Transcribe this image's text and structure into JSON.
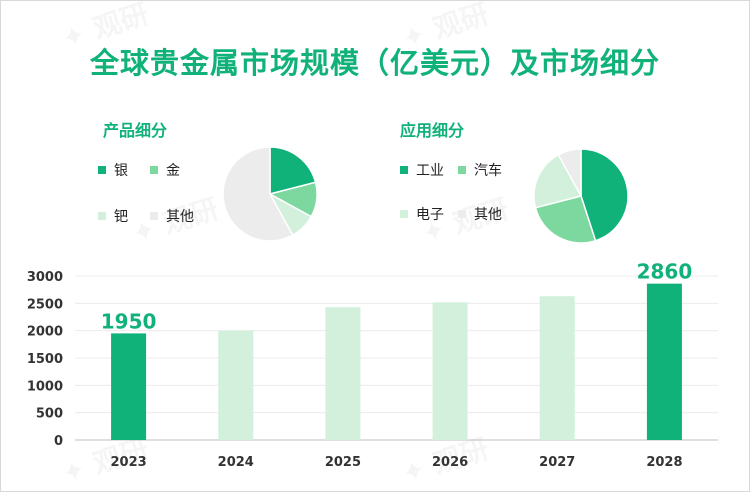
{
  "title": "全球贵金属市场规模（亿美元）及市场细分",
  "colors": {
    "dark_green": "#10b27a",
    "medium_green": "#7dd8a0",
    "light_green": "#d3f0dc",
    "very_light": "#ececec",
    "axis": "#bfbfbf"
  },
  "product_panel": {
    "title": "产品细分",
    "legend": [
      "银",
      "金",
      "钯",
      "其他"
    ]
  },
  "application_panel": {
    "title": "应用细分",
    "legend": [
      "工业",
      "汽车",
      "电子",
      "其他"
    ]
  },
  "chart_data": [
    {
      "type": "bar",
      "title": "全球贵金属市场规模（亿美元）",
      "categories": [
        "2023",
        "2024",
        "2025",
        "2026",
        "2027",
        "2028"
      ],
      "values": [
        1950,
        2000,
        2430,
        2520,
        2630,
        2860
      ],
      "highlighted": [
        true,
        false,
        false,
        false,
        false,
        true
      ],
      "data_labels": [
        "1950",
        "",
        "",
        "",
        "",
        "2860"
      ],
      "ylim": [
        0,
        3000
      ],
      "yticks": [
        0,
        500,
        1000,
        1500,
        2000,
        2500,
        3000
      ],
      "xlabel": "",
      "ylabel": "",
      "grid": true
    },
    {
      "type": "pie",
      "title": "产品细分",
      "labels": [
        "银",
        "金",
        "钯",
        "其他"
      ],
      "values": [
        21,
        12,
        9,
        58
      ]
    },
    {
      "type": "pie",
      "title": "应用细分",
      "labels": [
        "工业",
        "汽车",
        "电子",
        "其他"
      ],
      "values": [
        45,
        26,
        21,
        8
      ]
    }
  ]
}
